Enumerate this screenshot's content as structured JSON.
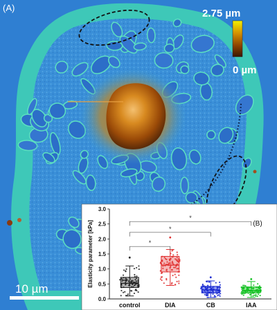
{
  "panel_a": {
    "label": "(A)",
    "colorbar": {
      "max_label": "2.75 µm",
      "min_label": "0 µm",
      "colors": [
        "#f3f000",
        "#b06a00",
        "#3a1600"
      ]
    },
    "scale_bar": {
      "label": "10 µm"
    }
  },
  "panel_b": {
    "label": "(B)"
  },
  "chart_data": {
    "type": "box",
    "ylabel": "Elasticity parameter [kPa]",
    "ylim": [
      0,
      3.0
    ],
    "yticks": [
      0.0,
      0.5,
      1.0,
      1.5,
      2.0,
      2.5,
      3.0
    ],
    "ytick_labels": [
      "0.0",
      "0.5",
      "1.0",
      "1.5",
      "2.0",
      "2.5",
      "3.0"
    ],
    "categories": [
      "control",
      "DIA",
      "CB",
      "IAA"
    ],
    "series": [
      {
        "name": "control",
        "color": "#222222",
        "box_color": "#9a9a9a",
        "q1": 0.38,
        "median": 0.52,
        "q3": 0.72,
        "whisker_low": 0.1,
        "whisker_high": 1.1,
        "max": 1.38
      },
      {
        "name": "DIA",
        "color": "#e03030",
        "box_color": "#f2a0a0",
        "q1": 0.9,
        "median": 1.13,
        "q3": 1.42,
        "whisker_low": 0.45,
        "whisker_high": 1.65,
        "max": 2.05
      },
      {
        "name": "CB",
        "color": "#1a2ad0",
        "box_color": "#6f7cf0",
        "q1": 0.2,
        "median": 0.3,
        "q3": 0.42,
        "whisker_low": 0.05,
        "whisker_high": 0.6,
        "max": 0.72
      },
      {
        "name": "IAA",
        "color": "#10c020",
        "box_color": "#78e07e",
        "q1": 0.2,
        "median": 0.28,
        "q3": 0.4,
        "whisker_low": 0.05,
        "whisker_high": 0.58,
        "max": 0.66
      }
    ],
    "significance": [
      {
        "from": "control",
        "to": "DIA",
        "label": "*"
      },
      {
        "from": "control",
        "to": "CB",
        "label": "*"
      },
      {
        "from": "control",
        "to": "IAA",
        "label": "*"
      }
    ]
  }
}
